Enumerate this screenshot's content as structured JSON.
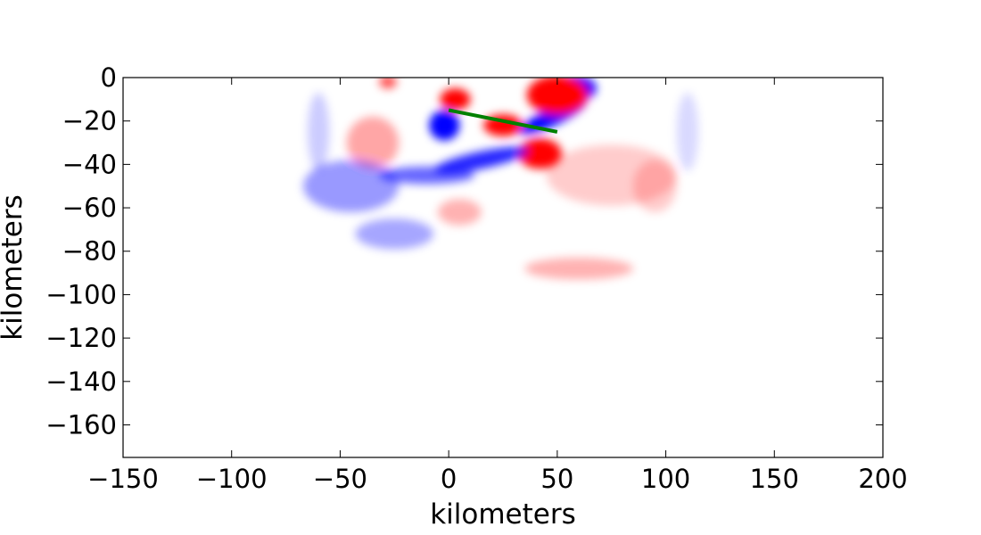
{
  "chart_data": {
    "type": "heatmap",
    "title": "",
    "xlabel": "kilometers",
    "ylabel": "kilometers",
    "xlim": [
      -150,
      200
    ],
    "ylim": [
      -175,
      0
    ],
    "xticks": [
      -150,
      -100,
      -50,
      0,
      50,
      100,
      150,
      200
    ],
    "yticks": [
      0,
      -20,
      -40,
      -60,
      -80,
      -100,
      -120,
      -140,
      -160
    ],
    "xtick_labels": [
      "−150",
      "−100",
      "−50",
      "0",
      "50",
      "100",
      "150",
      "200"
    ],
    "ytick_labels": [
      "0",
      "−20",
      "−40",
      "−60",
      "−80",
      "−100",
      "−120",
      "−140",
      "−160"
    ],
    "grid": false,
    "colormap": "bwr",
    "colors": {
      "positive": "#ff0000",
      "negative": "#0000ff",
      "zero": "#ffffff",
      "fault_line": "#008000"
    },
    "fault_line": {
      "x": [
        0,
        50
      ],
      "y": [
        -15,
        -25
      ]
    },
    "field_blobs": [
      {
        "x": 3,
        "y": -10,
        "rx": 7,
        "ry": 5,
        "value": 1.0
      },
      {
        "x": -2,
        "y": -22,
        "rx": 7,
        "ry": 7,
        "value": -1.0
      },
      {
        "x": 48,
        "y": -18,
        "rx": 17,
        "ry": 4,
        "value": -1.0,
        "angle": -25
      },
      {
        "x": 58,
        "y": -5,
        "rx": 10,
        "ry": 6,
        "value": -1.0
      },
      {
        "x": 42,
        "y": -35,
        "rx": 10,
        "ry": 7,
        "value": 1.0
      },
      {
        "x": 50,
        "y": -8,
        "rx": 14,
        "ry": 9,
        "value": 1.0
      },
      {
        "x": 25,
        "y": -22,
        "rx": 9,
        "ry": 5,
        "value": 1.0
      },
      {
        "x": 15,
        "y": -38,
        "rx": 22,
        "ry": 4,
        "value": -0.85,
        "angle": -12
      },
      {
        "x": -10,
        "y": -45,
        "rx": 22,
        "ry": 4,
        "value": -0.6
      },
      {
        "x": -28,
        "y": -2,
        "rx": 4,
        "ry": 3,
        "value": 0.7
      },
      {
        "x": -35,
        "y": -30,
        "rx": 12,
        "ry": 12,
        "value": 0.35
      },
      {
        "x": -45,
        "y": -50,
        "rx": 22,
        "ry": 12,
        "value": -0.4
      },
      {
        "x": -25,
        "y": -72,
        "rx": 18,
        "ry": 7,
        "value": -0.35
      },
      {
        "x": 60,
        "y": -88,
        "rx": 25,
        "ry": 5,
        "value": 0.3
      },
      {
        "x": 75,
        "y": -45,
        "rx": 30,
        "ry": 14,
        "value": 0.2
      },
      {
        "x": 5,
        "y": -62,
        "rx": 10,
        "ry": 6,
        "value": 0.3
      },
      {
        "x": -60,
        "y": -25,
        "rx": 5,
        "ry": 18,
        "value": -0.2
      },
      {
        "x": 110,
        "y": -25,
        "rx": 5,
        "ry": 18,
        "value": -0.15
      },
      {
        "x": 95,
        "y": -50,
        "rx": 10,
        "ry": 12,
        "value": 0.2
      }
    ]
  }
}
